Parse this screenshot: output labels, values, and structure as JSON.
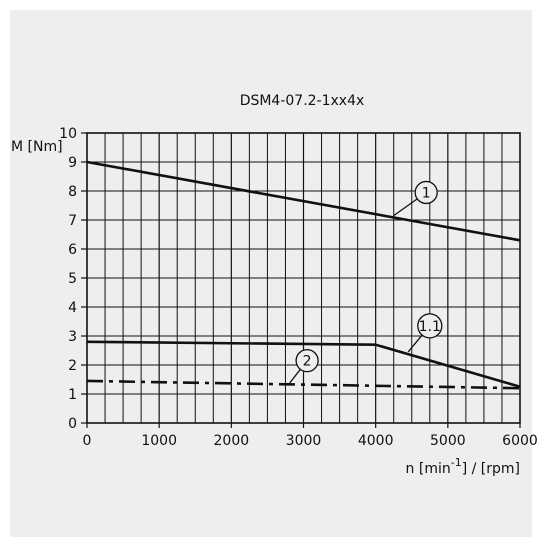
{
  "chart_data": {
    "type": "line",
    "title": "DSM4-07.2-1xx4x",
    "xlabel_prefix": "n [min",
    "xlabel_exp": "-1",
    "xlabel_suffix": "] / [rpm]",
    "ylabel": "M [Nm]",
    "xlim": [
      0,
      6000
    ],
    "ylim": [
      0,
      10
    ],
    "x_ticks": [
      "0",
      "1000",
      "2000",
      "3000",
      "4000",
      "5000",
      "6000"
    ],
    "y_ticks": [
      "0",
      "1",
      "2",
      "3",
      "4",
      "5",
      "6",
      "7",
      "8",
      "9",
      "10"
    ],
    "grid": true,
    "series": [
      {
        "name": "1",
        "style": "solid",
        "x": [
          0,
          6000
        ],
        "y": [
          9.0,
          6.3
        ]
      },
      {
        "name": "1.1",
        "style": "solid",
        "x": [
          0,
          4000,
          6000
        ],
        "y": [
          2.8,
          2.7,
          1.25
        ]
      },
      {
        "name": "2",
        "style": "dashdot",
        "x": [
          0,
          6000
        ],
        "y": [
          1.45,
          1.2
        ]
      }
    ],
    "callouts": [
      {
        "label": "1",
        "at_x": 4250,
        "at_y": 7.15,
        "label_x": 4700,
        "label_y": 7.95
      },
      {
        "label": "1.1",
        "at_x": 4450,
        "at_y": 2.45,
        "label_x": 4750,
        "label_y": 3.35
      },
      {
        "label": "2",
        "at_x": 2800,
        "at_y": 1.35,
        "label_x": 3050,
        "label_y": 2.15
      }
    ],
    "colors": {
      "line": "#111111",
      "grid": "#111111",
      "background": "#eeeeee"
    }
  }
}
